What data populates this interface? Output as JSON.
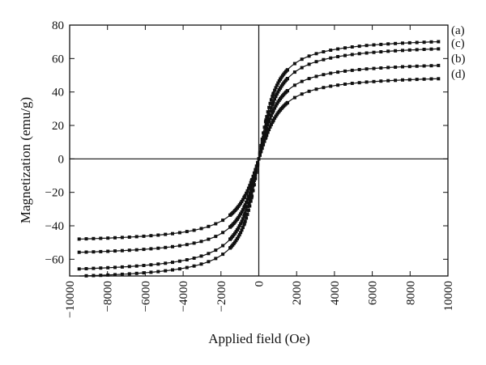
{
  "chart_data": {
    "type": "scatter",
    "title": "",
    "xlabel": "Applied field (Oe)",
    "ylabel": "Magnetization (emu/g)",
    "xlim": [
      -10000,
      10000
    ],
    "ylim": [
      -70,
      80
    ],
    "xticks": [
      -10000,
      -8000,
      -6000,
      -4000,
      -2000,
      0,
      2000,
      4000,
      6000,
      8000,
      10000
    ],
    "yticks": [
      -60,
      -40,
      -20,
      0,
      20,
      40,
      60,
      80
    ],
    "zero_lines": true,
    "markers": "small filled squares joined by a thin line",
    "series": [
      {
        "name": "(a)",
        "color": "#111111",
        "ms": 73.5,
        "hk": 700
      },
      {
        "name": "(c)",
        "color": "#111111",
        "ms": 69.5,
        "hk": 800
      },
      {
        "name": "(b)",
        "color": "#111111",
        "ms": 59,
        "hk": 800
      },
      {
        "name": "(d)",
        "color": "#111111",
        "ms": 51,
        "hk": 900
      }
    ]
  }
}
